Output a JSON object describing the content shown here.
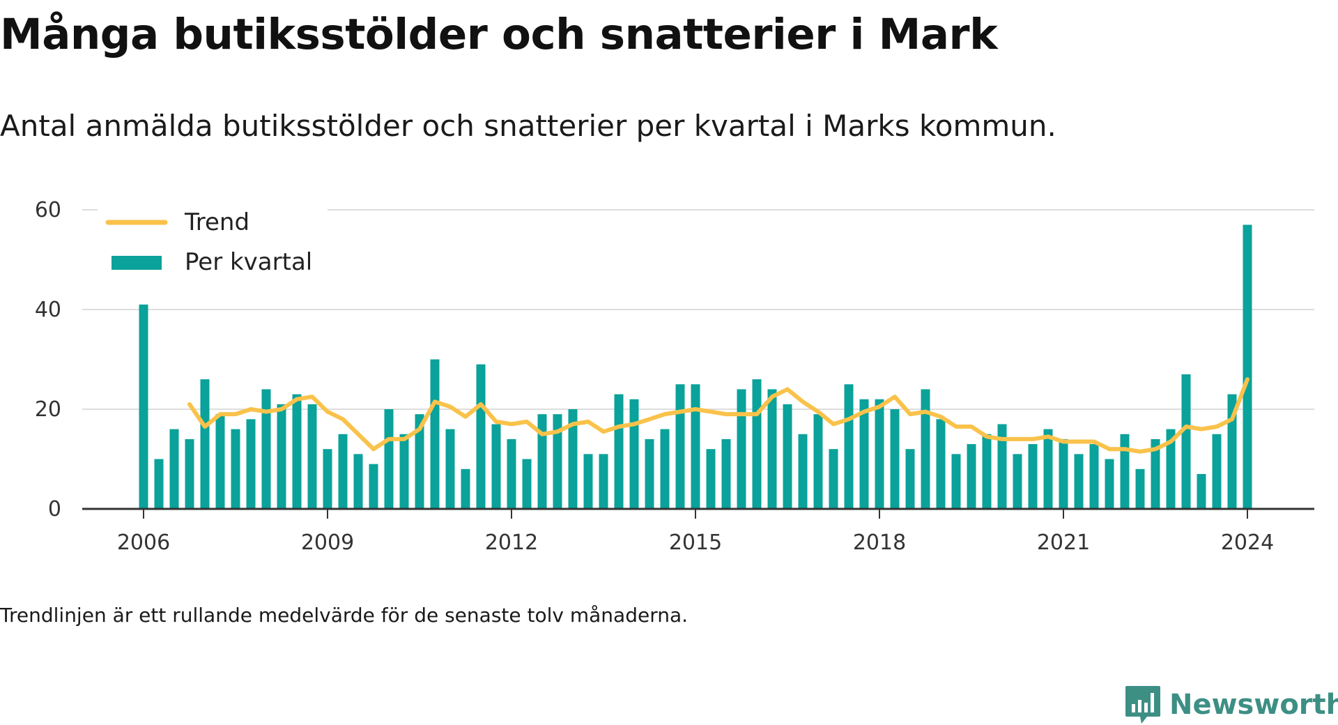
{
  "header": {
    "title": "Många butiksstölder och snatterier i Mark",
    "subtitle": "Antal anmälda butiksstölder och snatterier per kvartal i Marks kommun."
  },
  "footer": {
    "note": "Trendlinjen är ett rullande medelvärde för de senaste tolv månaderna.",
    "brand": "Newsworthy",
    "brand_icon": "newsworthy-logo-icon",
    "brand_color": "#3d8f84"
  },
  "chart_data": {
    "type": "bar",
    "x_start": "2006 Q1",
    "xticks": [
      "2006",
      "2009",
      "2012",
      "2015",
      "2018",
      "2021",
      "2024"
    ],
    "yticks": [
      0,
      20,
      40,
      60
    ],
    "ylim": [
      0,
      60
    ],
    "grid": true,
    "legend_position": "top-left",
    "series": [
      {
        "name": "Per kvartal",
        "kind": "bar",
        "color": "#0aa29a",
        "values": [
          41,
          10,
          16,
          14,
          26,
          19,
          16,
          18,
          24,
          21,
          23,
          21,
          12,
          15,
          11,
          9,
          20,
          15,
          19,
          30,
          16,
          8,
          29,
          17,
          14,
          10,
          19,
          19,
          20,
          11,
          11,
          23,
          22,
          14,
          16,
          25,
          25,
          12,
          14,
          24,
          26,
          24,
          21,
          15,
          19,
          12,
          25,
          22,
          22,
          20,
          12,
          24,
          18,
          11,
          13,
          15,
          17,
          11,
          13,
          16,
          14,
          11,
          13,
          10,
          15,
          8,
          14,
          16,
          27,
          7,
          15,
          23,
          57
        ]
      },
      {
        "name": "Trend",
        "kind": "line",
        "color": "#f9c24a",
        "values": [
          null,
          null,
          null,
          21,
          16.5,
          19,
          19,
          20,
          19.5,
          20,
          22,
          22.5,
          19.5,
          18,
          15,
          12,
          14,
          14,
          16,
          21.5,
          20.5,
          18.5,
          21,
          17.5,
          17,
          17.5,
          15,
          15.5,
          17,
          17.5,
          15.5,
          16.5,
          17,
          18,
          19,
          19.5,
          20,
          19.5,
          19,
          19,
          19,
          22.5,
          24,
          21.5,
          19.5,
          17,
          18,
          19.5,
          20.5,
          22.5,
          19,
          19.5,
          18.5,
          16.5,
          16.5,
          14.5,
          14,
          14,
          14,
          14.5,
          13.5,
          13.5,
          13.5,
          12,
          12,
          11.5,
          12,
          13.5,
          16.5,
          16,
          16.5,
          18,
          26
        ]
      }
    ]
  }
}
